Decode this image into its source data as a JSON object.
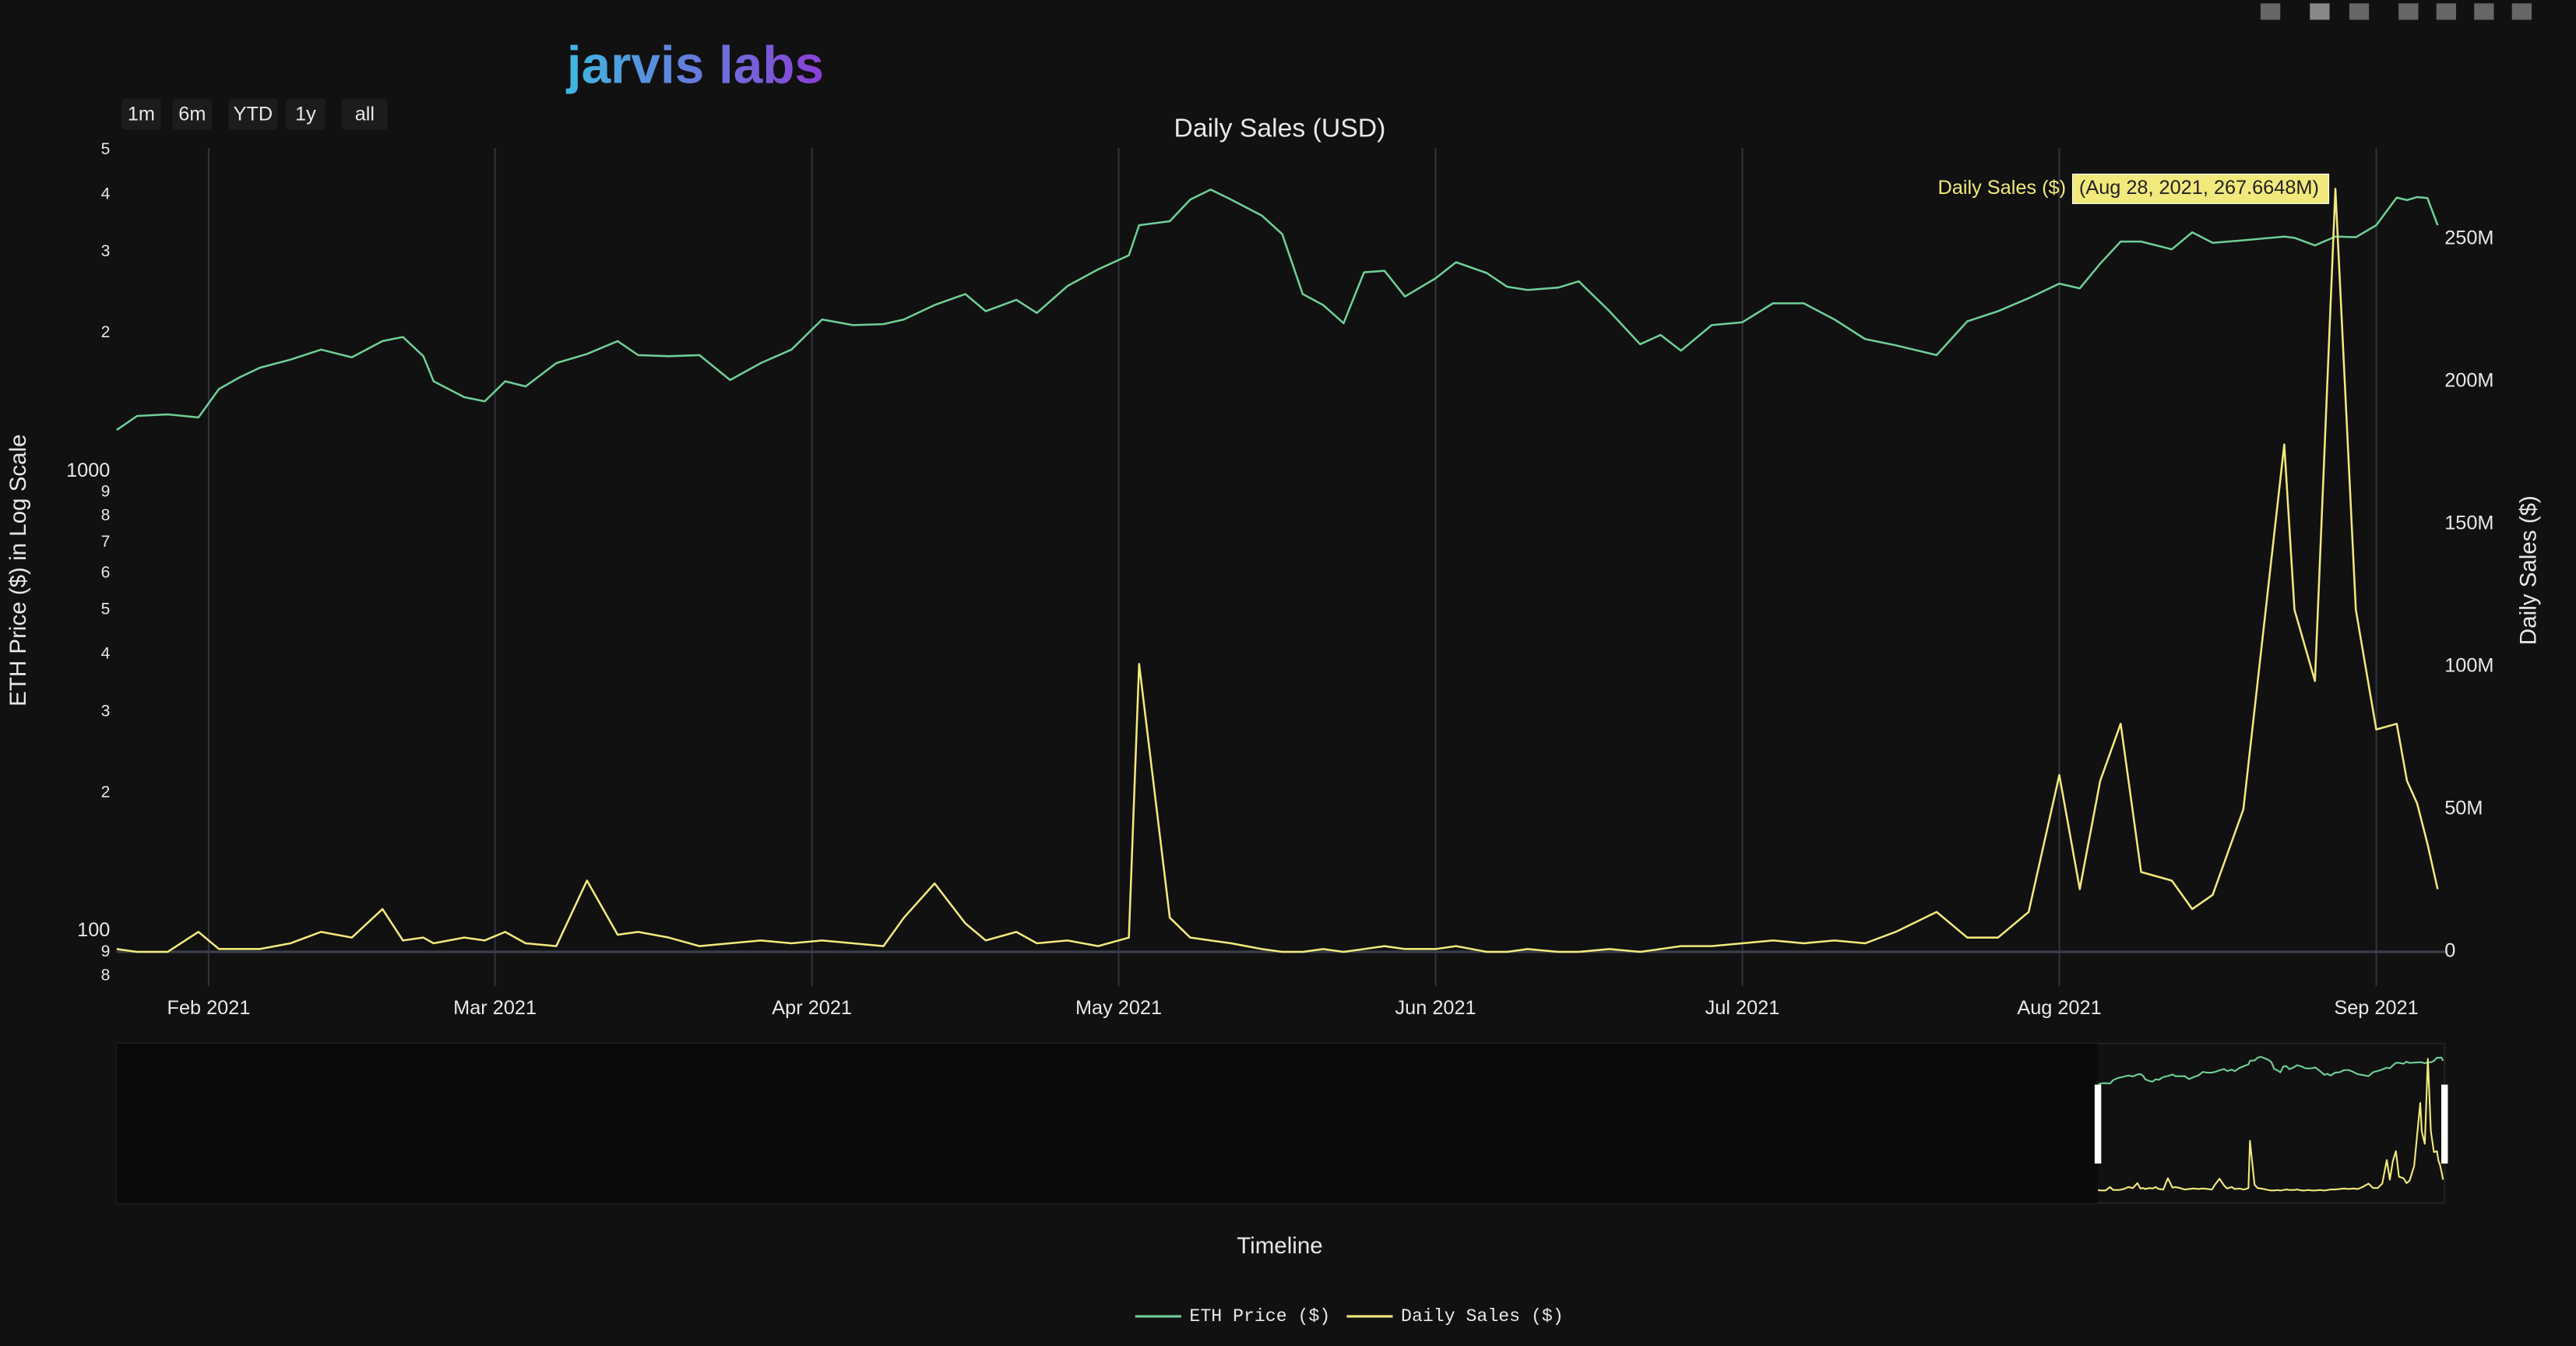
{
  "logo": "jarvis labs",
  "range_buttons": [
    "1m",
    "6m",
    "YTD",
    "1y",
    "all"
  ],
  "chart_data": {
    "type": "line",
    "title": "Daily Sales (USD)",
    "xlabel": "Timeline",
    "ylabel": "ETH Price ($) in Log Scale",
    "y2label": "Daily Sales ($)",
    "annotation": {
      "label": "Daily Sales ($)",
      "text": "(Aug 28, 2021, 267.6648M)"
    },
    "log_y": true,
    "grid": true,
    "xlim": [
      "2021-01-23",
      "2021-09-08"
    ],
    "xticks": [
      {
        "value": "2021-02-01",
        "label": "Feb 2021"
      },
      {
        "value": "2021-03-01",
        "label": "Mar 2021"
      },
      {
        "value": "2021-04-01",
        "label": "Apr 2021"
      },
      {
        "value": "2021-05-01",
        "label": "May 2021"
      },
      {
        "value": "2021-06-01",
        "label": "Jun 2021"
      },
      {
        "value": "2021-07-01",
        "label": "Jul 2021"
      },
      {
        "value": "2021-08-01",
        "label": "Aug 2021"
      },
      {
        "value": "2021-09-01",
        "label": "Sep 2021"
      }
    ],
    "ylim": [
      76,
      5050
    ],
    "yticks": [
      {
        "value": 80,
        "label": "8"
      },
      {
        "value": 90,
        "label": "9"
      },
      100,
      {
        "value": 200,
        "label": "2"
      },
      {
        "value": 300,
        "label": "3"
      },
      {
        "value": 400,
        "label": "4"
      },
      {
        "value": 500,
        "label": "5"
      },
      {
        "value": 600,
        "label": "6"
      },
      {
        "value": 700,
        "label": "7"
      },
      {
        "value": 800,
        "label": "8"
      },
      {
        "value": 900,
        "label": "9"
      },
      1000,
      {
        "value": 2000,
        "label": "2"
      },
      {
        "value": 3000,
        "label": "3"
      },
      {
        "value": 4000,
        "label": "4"
      },
      {
        "value": 5000,
        "label": "5"
      }
    ],
    "y2lim": [
      -12000000,
      282000000
    ],
    "y2ticks": [
      0,
      {
        "value": 50000000,
        "label": "50M"
      },
      {
        "value": 100000000,
        "label": "100M"
      },
      {
        "value": 150000000,
        "label": "150M"
      },
      {
        "value": 200000000,
        "label": "200M"
      },
      {
        "value": 250000000,
        "label": "250M"
      }
    ],
    "x": [
      "2021-01-23",
      "2021-01-25",
      "2021-01-28",
      "2021-01-31",
      "2021-02-02",
      "2021-02-04",
      "2021-02-06",
      "2021-02-09",
      "2021-02-12",
      "2021-02-15",
      "2021-02-18",
      "2021-02-20",
      "2021-02-22",
      "2021-02-23",
      "2021-02-26",
      "2021-02-28",
      "2021-03-02",
      "2021-03-04",
      "2021-03-07",
      "2021-03-10",
      "2021-03-13",
      "2021-03-15",
      "2021-03-18",
      "2021-03-21",
      "2021-03-24",
      "2021-03-27",
      "2021-03-30",
      "2021-04-02",
      "2021-04-05",
      "2021-04-08",
      "2021-04-10",
      "2021-04-13",
      "2021-04-16",
      "2021-04-18",
      "2021-04-21",
      "2021-04-23",
      "2021-04-26",
      "2021-04-29",
      "2021-05-02",
      "2021-05-03",
      "2021-05-06",
      "2021-05-08",
      "2021-05-10",
      "2021-05-12",
      "2021-05-15",
      "2021-05-17",
      "2021-05-19",
      "2021-05-21",
      "2021-05-23",
      "2021-05-25",
      "2021-05-27",
      "2021-05-29",
      "2021-06-01",
      "2021-06-03",
      "2021-06-06",
      "2021-06-08",
      "2021-06-10",
      "2021-06-13",
      "2021-06-15",
      "2021-06-18",
      "2021-06-21",
      "2021-06-23",
      "2021-06-25",
      "2021-06-28",
      "2021-07-01",
      "2021-07-04",
      "2021-07-07",
      "2021-07-10",
      "2021-07-13",
      "2021-07-16",
      "2021-07-20",
      "2021-07-23",
      "2021-07-26",
      "2021-07-29",
      "2021-08-01",
      "2021-08-03",
      "2021-08-05",
      "2021-08-07",
      "2021-08-09",
      "2021-08-12",
      "2021-08-14",
      "2021-08-16",
      "2021-08-19",
      "2021-08-23",
      "2021-08-24",
      "2021-08-26",
      "2021-08-28",
      "2021-08-30",
      "2021-09-01",
      "2021-09-03",
      "2021-09-04",
      "2021-09-05",
      "2021-09-06",
      "2021-09-07"
    ],
    "series": [
      {
        "name": "ETH Price ($)",
        "color": "#6fcf97",
        "values": [
          1230,
          1320,
          1330,
          1310,
          1510,
          1600,
          1680,
          1750,
          1840,
          1770,
          1920,
          1960,
          1780,
          1570,
          1450,
          1420,
          1570,
          1530,
          1720,
          1800,
          1920,
          1790,
          1780,
          1790,
          1580,
          1720,
          1840,
          2140,
          2080,
          2090,
          2140,
          2300,
          2430,
          2230,
          2360,
          2210,
          2530,
          2750,
          2950,
          3430,
          3500,
          3900,
          4100,
          3900,
          3600,
          3280,
          2430,
          2300,
          2100,
          2710,
          2730,
          2400,
          2630,
          2850,
          2700,
          2520,
          2480,
          2510,
          2590,
          2230,
          1890,
          1980,
          1830,
          2080,
          2110,
          2320,
          2320,
          2140,
          1940,
          1880,
          1790,
          2120,
          2230,
          2380,
          2560,
          2500,
          2830,
          3160,
          3160,
          3040,
          3310,
          3140,
          3180,
          3240,
          3220,
          3100,
          3240,
          3230,
          3430,
          3940,
          3890,
          3950,
          3930,
          3430
        ]
      },
      {
        "name": "Daily Sales ($)",
        "color": "#f2e97c",
        "axis": "y2",
        "values": [
          1000000,
          0,
          0,
          7000000,
          1000000,
          1000000,
          1000000,
          3000000,
          7000000,
          5000000,
          15000000,
          4000000,
          5000000,
          3000000,
          5000000,
          4000000,
          7000000,
          3000000,
          2000000,
          25000000,
          6000000,
          7000000,
          5000000,
          2000000,
          3000000,
          4000000,
          3000000,
          4000000,
          3000000,
          2000000,
          12000000,
          24000000,
          10000000,
          4000000,
          7000000,
          3000000,
          4000000,
          2000000,
          5000000,
          101000000,
          12000000,
          5000000,
          4000000,
          3000000,
          1000000,
          0,
          0,
          1000000,
          0,
          1000000,
          2000000,
          1000000,
          1000000,
          2000000,
          0,
          0,
          1000000,
          0,
          0,
          1000000,
          0,
          1000000,
          2000000,
          2000000,
          3000000,
          4000000,
          3000000,
          4000000,
          3000000,
          7000000,
          14000000,
          5000000,
          5000000,
          14000000,
          62000000,
          22000000,
          60000000,
          80000000,
          28000000,
          25000000,
          15000000,
          20000000,
          50000000,
          178000000,
          120000000,
          95000000,
          267664800,
          120000000,
          78000000,
          80000000,
          60000000,
          52000000,
          38000000,
          22000000
        ]
      }
    ]
  }
}
